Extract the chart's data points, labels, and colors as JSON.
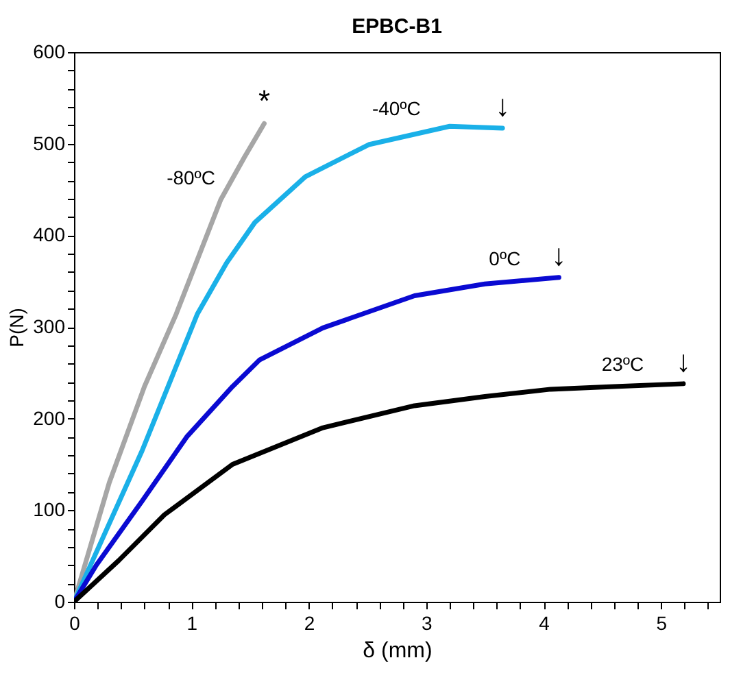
{
  "chart_data": {
    "type": "line",
    "title": "EPBC-B1",
    "xlabel": "δ (mm)",
    "ylabel": "P(N)",
    "xlim": [
      0,
      5.5
    ],
    "ylim": [
      0,
      600
    ],
    "xticks": [
      0,
      {
        "value": 0.2,
        "label": null
      },
      {
        "value": 0.4,
        "label": null
      },
      {
        "value": 0.6,
        "label": null
      },
      {
        "value": 0.8,
        "label": null
      },
      1,
      {
        "value": 1.2,
        "label": null
      },
      {
        "value": 1.4,
        "label": null
      },
      {
        "value": 1.6,
        "label": null
      },
      {
        "value": 1.8,
        "label": null
      },
      2,
      {
        "value": 2.2,
        "label": null
      },
      {
        "value": 2.4,
        "label": null
      },
      {
        "value": 2.6,
        "label": null
      },
      {
        "value": 2.8,
        "label": null
      },
      3,
      {
        "value": 3.2,
        "label": null
      },
      {
        "value": 3.4,
        "label": null
      },
      {
        "value": 3.6,
        "label": null
      },
      {
        "value": 3.8,
        "label": null
      },
      4,
      {
        "value": 4.2,
        "label": null
      },
      {
        "value": 4.4,
        "label": null
      },
      {
        "value": 4.6,
        "label": null
      },
      {
        "value": 4.8,
        "label": null
      },
      5,
      {
        "value": 5.2,
        "label": null
      },
      {
        "value": 5.4,
        "label": null
      }
    ],
    "yticks": [
      0,
      {
        "value": 20,
        "label": null
      },
      {
        "value": 40,
        "label": null
      },
      {
        "value": 60,
        "label": null
      },
      {
        "value": 80,
        "label": null
      },
      100,
      {
        "value": 120,
        "label": null
      },
      {
        "value": 140,
        "label": null
      },
      {
        "value": 160,
        "label": null
      },
      {
        "value": 180,
        "label": null
      },
      200,
      {
        "value": 220,
        "label": null
      },
      {
        "value": 240,
        "label": null
      },
      {
        "value": 260,
        "label": null
      },
      {
        "value": 280,
        "label": null
      },
      300,
      {
        "value": 320,
        "label": null
      },
      {
        "value": 340,
        "label": null
      },
      {
        "value": 360,
        "label": null
      },
      {
        "value": 380,
        "label": null
      },
      400,
      {
        "value": 420,
        "label": null
      },
      {
        "value": 440,
        "label": null
      },
      {
        "value": 460,
        "label": null
      },
      {
        "value": 480,
        "label": null
      },
      500,
      {
        "value": 520,
        "label": null
      },
      {
        "value": 540,
        "label": null
      },
      {
        "value": 560,
        "label": null
      },
      {
        "value": 580,
        "label": null
      },
      600
    ],
    "marker": "none",
    "line_style": "solid",
    "series": [
      {
        "color": "#a6a6a6",
        "x": [
          0,
          0.3,
          0.6,
          0.87,
          1.25,
          1.45,
          1.62
        ],
        "values": [
          0,
          130,
          235,
          314,
          439,
          485,
          522
        ]
      },
      {
        "color": "#1ab0e8",
        "x": [
          0,
          0.58,
          1.05,
          1.3,
          1.54,
          1.97,
          2.51,
          3.2,
          3.65
        ],
        "values": [
          0,
          165,
          314,
          370,
          414,
          464,
          499,
          519,
          517
        ]
      },
      {
        "color": "#0a0ad2",
        "x": [
          0,
          0.19,
          0.58,
          0.96,
          1.35,
          1.58,
          2.12,
          2.9,
          3.5,
          4.13
        ],
        "values": [
          0,
          40,
          110,
          180,
          235,
          264,
          299,
          334,
          347,
          354
        ]
      },
      {
        "color": "#000000",
        "x": [
          0,
          0.38,
          0.77,
          1.35,
          2.12,
          2.9,
          3.5,
          4.06,
          4.6,
          5.19
        ],
        "values": [
          0,
          45,
          95,
          150,
          190,
          214,
          224,
          232,
          235,
          238
        ]
      }
    ],
    "annotations": [
      {
        "text": "-80ºC",
        "x": 1.25,
        "y": 439
      },
      {
        "text": "-40ºC",
        "x": 3.0,
        "y": 515
      },
      {
        "text": "0ºC",
        "x": 3.85,
        "y": 351
      },
      {
        "text": "23ºC",
        "x": 4.9,
        "y": 236
      },
      {
        "text": "*",
        "x": 1.62,
        "y": 522
      },
      {
        "text": "↓",
        "x": 3.65,
        "y": 517
      },
      {
        "text": "↓",
        "x": 4.13,
        "y": 354
      },
      {
        "text": "↓",
        "x": 5.19,
        "y": 238
      }
    ]
  }
}
